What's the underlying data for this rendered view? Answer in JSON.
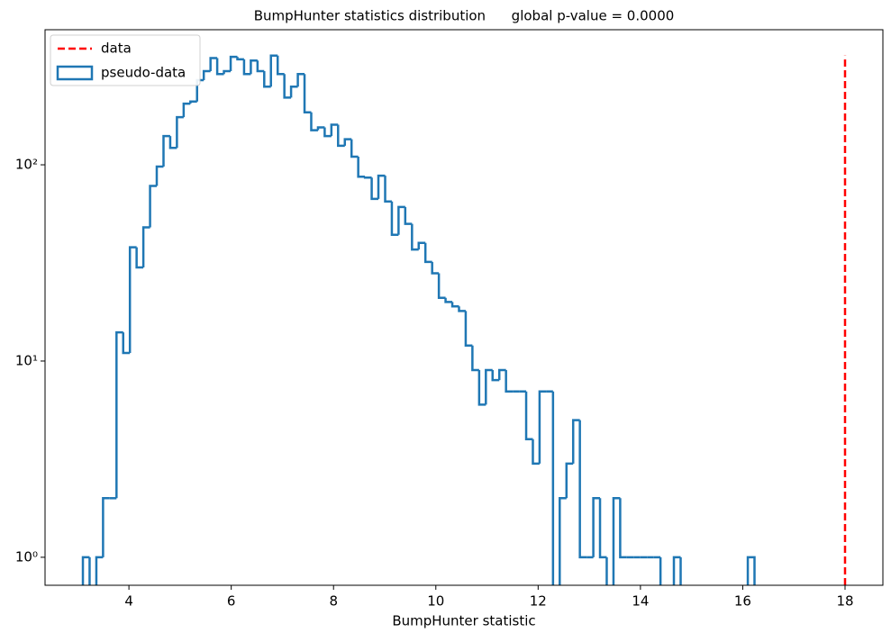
{
  "chart_data": {
    "type": "histogram",
    "title": "BumpHunter statistics distribution      global p-value = 0.0000",
    "x_label": "BumpHunter statistic",
    "log_y": true,
    "legend": "upper left",
    "xlim": [
      2.36,
      18.74
    ],
    "ylim": [
      0.72,
      488
    ],
    "xticks": [
      4,
      6,
      8,
      10,
      12,
      14,
      16,
      18
    ],
    "yticks": [
      {
        "value": 1,
        "label": "10⁰"
      },
      {
        "value": 10,
        "label": "10¹"
      },
      {
        "value": 100,
        "label": "10²"
      }
    ],
    "series": [
      {
        "name": "data",
        "color": "red",
        "style": "dashed",
        "x": 18,
        "ymax": 360
      },
      {
        "name": "pseudo-data",
        "color": "#1f77b4",
        "bins": [
          3.1,
          3.231,
          3.363,
          3.494,
          3.625,
          3.757,
          3.888,
          4.019,
          4.15,
          4.282,
          4.413,
          4.544,
          4.676,
          4.807,
          4.938,
          5.07,
          5.201,
          5.332,
          5.463,
          5.595,
          5.726,
          5.857,
          5.989,
          6.12,
          6.251,
          6.383,
          6.514,
          6.645,
          6.776,
          6.908,
          7.039,
          7.17,
          7.302,
          7.433,
          7.564,
          7.696,
          7.827,
          7.958,
          8.089,
          8.221,
          8.352,
          8.483,
          8.615,
          8.746,
          8.877,
          9.009,
          9.14,
          9.271,
          9.402,
          9.534,
          9.665,
          9.796,
          9.928,
          10.059,
          10.19,
          10.322,
          10.453,
          10.584,
          10.715,
          10.847,
          10.978,
          11.109,
          11.241,
          11.372,
          11.503,
          11.635,
          11.766,
          11.897,
          12.028,
          12.16,
          12.291,
          12.422,
          12.554,
          12.685,
          12.816,
          12.948,
          13.079,
          13.21,
          13.341,
          13.473,
          13.604,
          13.735,
          13.867,
          13.998,
          14.129,
          14.261,
          14.392,
          14.523,
          14.654,
          14.786,
          14.917,
          15.048,
          15.18,
          15.311,
          15.442,
          15.574,
          15.705,
          15.836,
          15.967,
          16.099,
          16.23
        ],
        "values": [
          1,
          0,
          1,
          2,
          2,
          14,
          11,
          38,
          30,
          48,
          78,
          98,
          140,
          122,
          175,
          205,
          210,
          270,
          300,
          350,
          290,
          300,
          355,
          345,
          290,
          340,
          300,
          250,
          360,
          290,
          220,
          250,
          290,
          185,
          150,
          155,
          140,
          160,
          125,
          135,
          110,
          87,
          86,
          67,
          88,
          65,
          44,
          61,
          50,
          37,
          40,
          32,
          28,
          21,
          20,
          19,
          18,
          12,
          9,
          6,
          9,
          8,
          9,
          7,
          7,
          7,
          4,
          3,
          7,
          7,
          0,
          2,
          3,
          5,
          1,
          1,
          2,
          1,
          0,
          2,
          1,
          1,
          1,
          1,
          1,
          1,
          0,
          0,
          1,
          0,
          0,
          0,
          0,
          0,
          0,
          0,
          0,
          0,
          0,
          1
        ]
      }
    ]
  }
}
